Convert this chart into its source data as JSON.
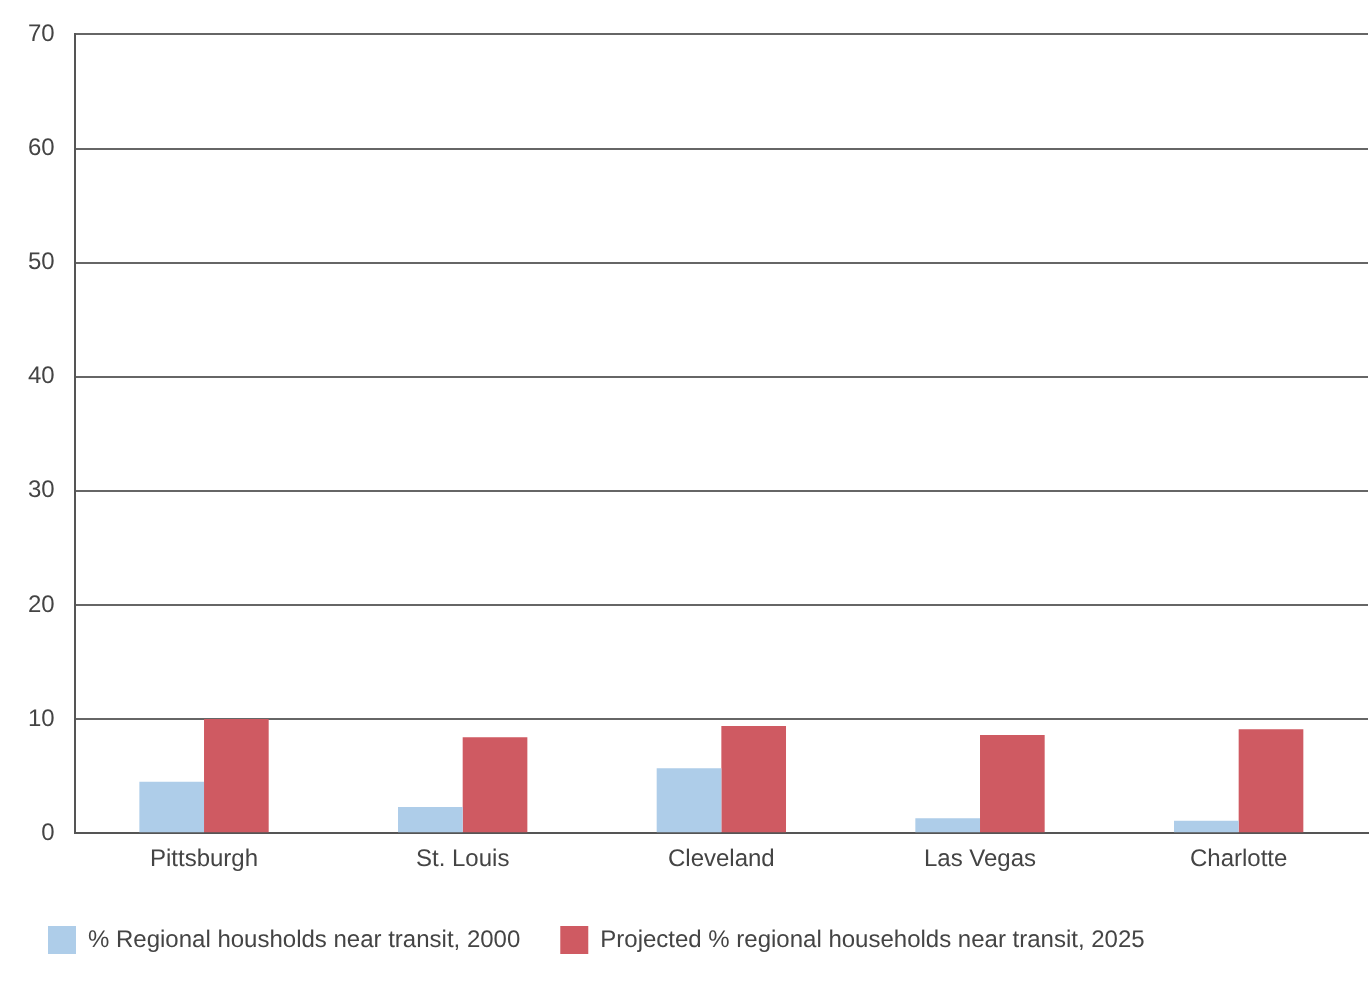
{
  "chart_data": {
    "type": "bar",
    "categories": [
      "Pittsburgh",
      "St. Louis",
      "Cleveland",
      "Las Vegas",
      "Charlotte"
    ],
    "series": [
      {
        "name": "% Regional housholds near transit, 2000",
        "color": "#aecde9",
        "values": [
          4.5,
          2.3,
          5.7,
          1.3,
          1.1
        ]
      },
      {
        "name": "Projected % regional households near transit, 2025",
        "color": "#cf5a62",
        "values": [
          10.0,
          8.4,
          9.4,
          8.6,
          9.1
        ]
      }
    ],
    "ylim": [
      0,
      70
    ],
    "yticks": [
      0,
      10,
      20,
      30,
      40,
      50,
      60,
      70
    ],
    "grid": "y",
    "legend": "bottom left"
  }
}
